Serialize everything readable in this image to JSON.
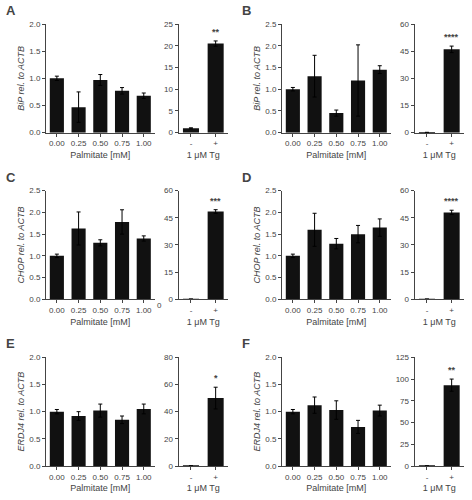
{
  "chart_data": [
    {
      "type": "bar",
      "title": "A",
      "categories": [
        "0.00",
        "0.25",
        "0.50",
        "0.75",
        "1.00"
      ],
      "values": [
        1.0,
        0.47,
        0.97,
        0.77,
        0.68
      ],
      "errors": [
        0.04,
        0.28,
        0.1,
        0.06,
        0.05
      ],
      "color": "#111111",
      "x_label": "Palmitate [mM]",
      "y_label": "BiP rel. to ACTB",
      "ylim": [
        0,
        2.0
      ],
      "yticks": [
        {
          "value": 0.0,
          "label": "0.0"
        },
        0.5,
        {
          "value": 1.0,
          "label": "1.0"
        },
        1.5,
        {
          "value": 2.0,
          "label": "2.0"
        }
      ],
      "grid": false
    },
    {
      "type": "bar",
      "categories": [
        "-",
        "+"
      ],
      "values": [
        1.0,
        20.5
      ],
      "errors": [
        0.12,
        0.6
      ],
      "color": "#111111",
      "x_label": "1 μM Tg",
      "ylim": [
        0,
        25
      ],
      "yticks": [
        0,
        5,
        10,
        15,
        20,
        25
      ],
      "grid": false,
      "annotations": [
        {
          "text": "**",
          "x": "+"
        }
      ]
    },
    {
      "type": "bar",
      "title": "B",
      "categories": [
        "0.00",
        "0.25",
        "0.50",
        "0.75",
        "1.00"
      ],
      "values": [
        1.0,
        1.3,
        0.45,
        1.2,
        1.45
      ],
      "errors": [
        0.04,
        0.48,
        0.07,
        0.82,
        0.09
      ],
      "color": "#111111",
      "x_label": "Palmitate [mM]",
      "y_label": "BiP rel. to ACTB",
      "ylim": [
        0,
        2.5
      ],
      "yticks": [
        {
          "value": 0.0,
          "label": "0.0"
        },
        0.5,
        {
          "value": 1.0,
          "label": "1.0"
        },
        1.5,
        {
          "value": 2.0,
          "label": "2.0"
        },
        2.5
      ],
      "grid": false
    },
    {
      "type": "bar",
      "categories": [
        "-",
        "+"
      ],
      "values": [
        0.15,
        46.0
      ],
      "errors": [
        0.05,
        1.8
      ],
      "color": "#111111",
      "x_label": "1 μM Tg",
      "ylim": [
        0,
        60
      ],
      "yticks": [
        0,
        15,
        30,
        45,
        60
      ],
      "grid": false,
      "annotations": [
        {
          "text": "****",
          "x": "+"
        }
      ]
    },
    {
      "type": "bar",
      "title": "C",
      "categories": [
        "0.00",
        "0.25",
        "0.50",
        "0.75",
        "1.00"
      ],
      "values": [
        1.0,
        1.63,
        1.3,
        1.78,
        1.4
      ],
      "errors": [
        0.04,
        0.38,
        0.07,
        0.28,
        0.06
      ],
      "color": "#111111",
      "x_label": "Palmitate [mM]",
      "y_label": "CHOP rel. to ACTB",
      "ylim": [
        0,
        2.5
      ],
      "yticks": [
        {
          "value": 0.0,
          "label": "0.0"
        },
        0.5,
        {
          "value": 1.0,
          "label": "1.0"
        },
        1.5,
        {
          "value": 2.0,
          "label": "2.0"
        },
        2.5
      ],
      "grid": false
    },
    {
      "type": "bar",
      "categories": [
        "-",
        "+"
      ],
      "values": [
        0.12,
        48.5
      ],
      "errors": [
        0.05,
        1.0
      ],
      "color": "#111111",
      "x_label": "1 μM Tg",
      "ylim": [
        0,
        60
      ],
      "yticks": [
        0,
        15,
        30,
        45,
        60
      ],
      "grid": false,
      "annotations": [
        {
          "text": "***",
          "x": "+"
        },
        {
          "text": "0",
          "y": 0
        }
      ]
    },
    {
      "type": "bar",
      "title": "D",
      "categories": [
        "0.00",
        "0.25",
        "0.50",
        "0.75",
        "1.00"
      ],
      "values": [
        1.0,
        1.6,
        1.28,
        1.5,
        1.65
      ],
      "errors": [
        0.04,
        0.38,
        0.12,
        0.2,
        0.2
      ],
      "color": "#111111",
      "x_label": "Palmitate [mM]",
      "y_label": "CHOP rel. to ACTB",
      "ylim": [
        0,
        2.5
      ],
      "yticks": [
        {
          "value": 0.0,
          "label": "0.0"
        },
        0.5,
        {
          "value": 1.0,
          "label": "1.0"
        },
        1.5,
        {
          "value": 2.0,
          "label": "2.0"
        },
        2.5
      ],
      "grid": false
    },
    {
      "type": "bar",
      "categories": [
        "-",
        "+"
      ],
      "values": [
        0.12,
        48.0
      ],
      "errors": [
        0.05,
        1.2
      ],
      "color": "#111111",
      "x_label": "1 μM Tg",
      "ylim": [
        0,
        60
      ],
      "yticks": [
        0,
        15,
        30,
        45,
        60
      ],
      "grid": false,
      "annotations": [
        {
          "text": "****",
          "x": "+"
        }
      ]
    },
    {
      "type": "bar",
      "title": "E",
      "categories": [
        "0.00",
        "0.25",
        "0.50",
        "0.75",
        "1.00"
      ],
      "values": [
        1.0,
        0.92,
        1.02,
        0.85,
        1.05
      ],
      "errors": [
        0.04,
        0.08,
        0.12,
        0.07,
        0.09
      ],
      "color": "#111111",
      "x_label": "Palmitate [mM]",
      "y_label": "ERDJ4 rel. to ACTB",
      "ylim": [
        0,
        2.0
      ],
      "yticks": [
        {
          "value": 0.0,
          "label": "0.0"
        },
        0.5,
        {
          "value": 1.0,
          "label": "1.0"
        },
        1.5,
        {
          "value": 2.0,
          "label": "2.0"
        }
      ],
      "grid": false
    },
    {
      "type": "bar",
      "categories": [
        "-",
        "+"
      ],
      "values": [
        0.12,
        50.0
      ],
      "errors": [
        0.05,
        8.0
      ],
      "color": "#111111",
      "x_label": "1 μM Tg",
      "ylim": [
        0,
        80
      ],
      "yticks": [
        0,
        20,
        40,
        60,
        80
      ],
      "grid": false,
      "annotations": [
        {
          "text": "*",
          "x": "+"
        }
      ]
    },
    {
      "type": "bar",
      "title": "F",
      "categories": [
        "0.00",
        "0.25",
        "0.50",
        "0.75",
        "1.00"
      ],
      "values": [
        1.0,
        1.12,
        1.03,
        0.72,
        1.02
      ],
      "errors": [
        0.04,
        0.15,
        0.17,
        0.12,
        0.1
      ],
      "color": "#111111",
      "x_label": "Palmitate [mM]",
      "y_label": "ERDJ4 rel. to ACTB",
      "ylim": [
        0,
        2.0
      ],
      "yticks": [
        {
          "value": 0.0,
          "label": "0.0"
        },
        0.5,
        {
          "value": 1.0,
          "label": "1.0"
        },
        1.5,
        {
          "value": 2.0,
          "label": "2.0"
        }
      ],
      "grid": false
    },
    {
      "type": "bar",
      "categories": [
        "-",
        "+"
      ],
      "values": [
        0.12,
        93.0
      ],
      "errors": [
        0.05,
        7.0
      ],
      "color": "#111111",
      "x_label": "1 μM Tg",
      "ylim": [
        0,
        125
      ],
      "yticks": [
        0,
        25,
        50,
        75,
        100,
        125
      ],
      "grid": false,
      "annotations": [
        {
          "text": "**",
          "x": "+"
        }
      ]
    }
  ]
}
